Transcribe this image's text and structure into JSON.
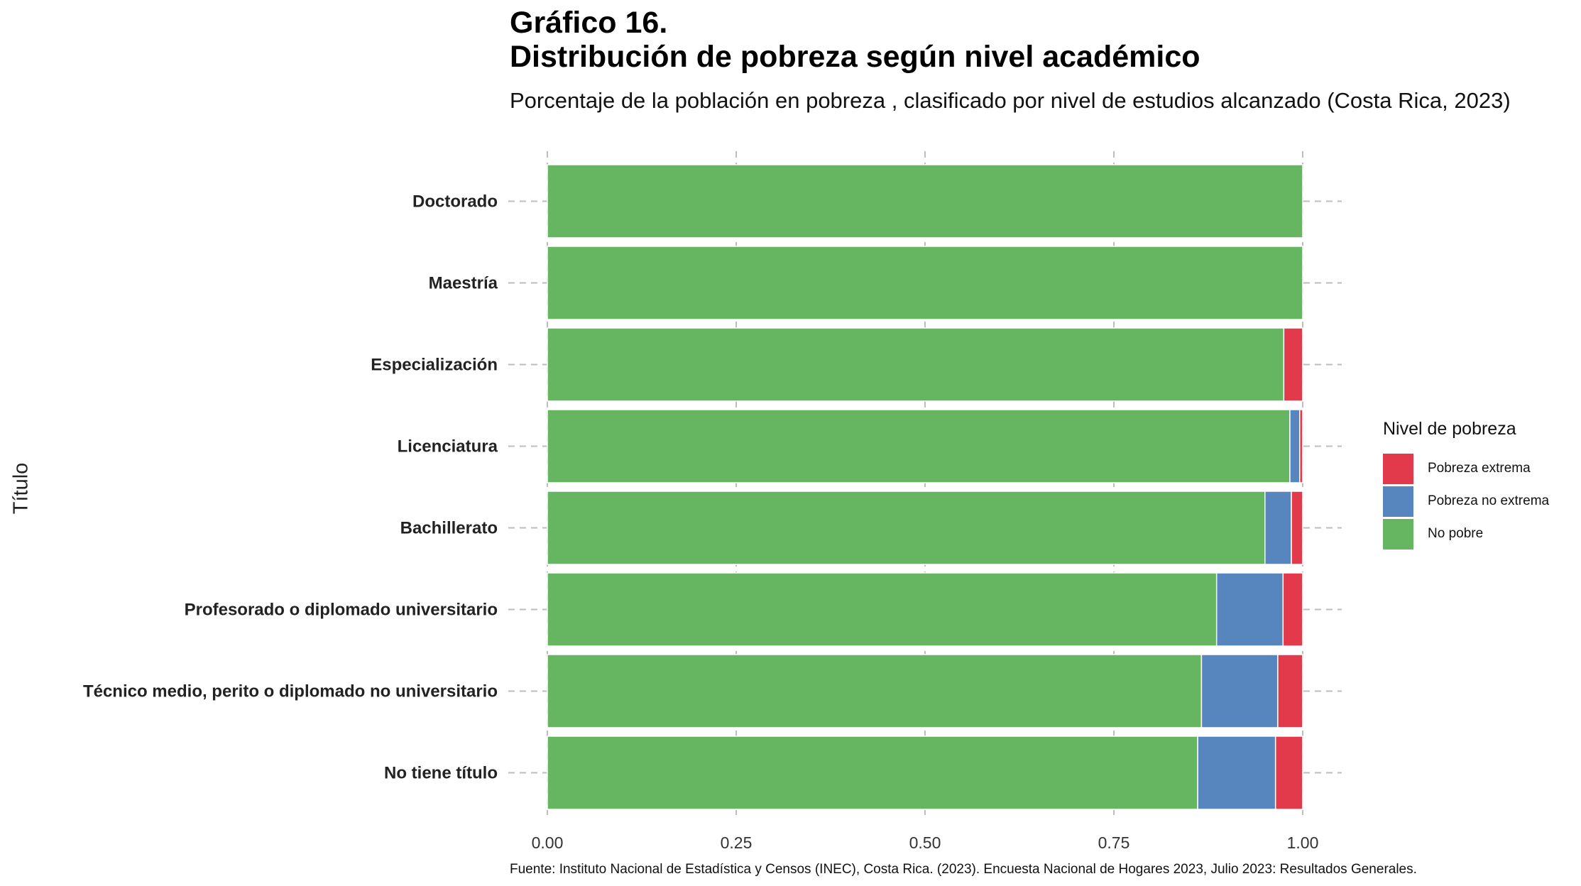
{
  "title_line1": "Gráfico 16.",
  "title_line2": "Distribución de pobreza según nivel académico",
  "subtitle": "Porcentaje de la población en pobreza , clasificado por nivel de estudios alcanzado (Costa Rica, 2023)",
  "caption": "Fuente: Instituto Nacional de Estadística y Censos (INEC), Costa Rica. (2023). Encuesta Nacional de Hogares 2023, Julio 2023: Resultados Generales.",
  "legend": {
    "title": "Nivel de pobreza",
    "items": [
      {
        "label": "Pobreza extrema",
        "color": "#E23A4B"
      },
      {
        "label": "Pobreza no extrema",
        "color": "#5686BD"
      },
      {
        "label": "No pobre",
        "color": "#65B561"
      }
    ]
  },
  "chart_data": {
    "type": "bar",
    "orientation": "horizontal",
    "stacked": true,
    "ylabel": "Título",
    "xlabel": "",
    "xlim": [
      0,
      1
    ],
    "x_ticks": [
      "0.00",
      "0.25",
      "0.50",
      "0.75",
      "1.00"
    ],
    "grid": true,
    "legend_position": "right",
    "categories": [
      "Doctorado",
      "Maestría",
      "Especialización",
      "Licenciatura",
      "Bachillerato",
      "Profesorado o diplomado universitario",
      "Técnico medio, perito o diplomado no universitario",
      "No tiene título"
    ],
    "series": [
      {
        "name": "No pobre",
        "color": "#65B561",
        "values": [
          1.0,
          1.0,
          0.975,
          0.983,
          0.95,
          0.886,
          0.866,
          0.861
        ]
      },
      {
        "name": "Pobreza no extrema",
        "color": "#5686BD",
        "values": [
          0.0,
          0.0,
          0.0,
          0.013,
          0.035,
          0.088,
          0.101,
          0.103
        ]
      },
      {
        "name": "Pobreza extrema",
        "color": "#E23A4B",
        "values": [
          0.0,
          0.0,
          0.025,
          0.004,
          0.015,
          0.026,
          0.033,
          0.036
        ]
      }
    ]
  }
}
